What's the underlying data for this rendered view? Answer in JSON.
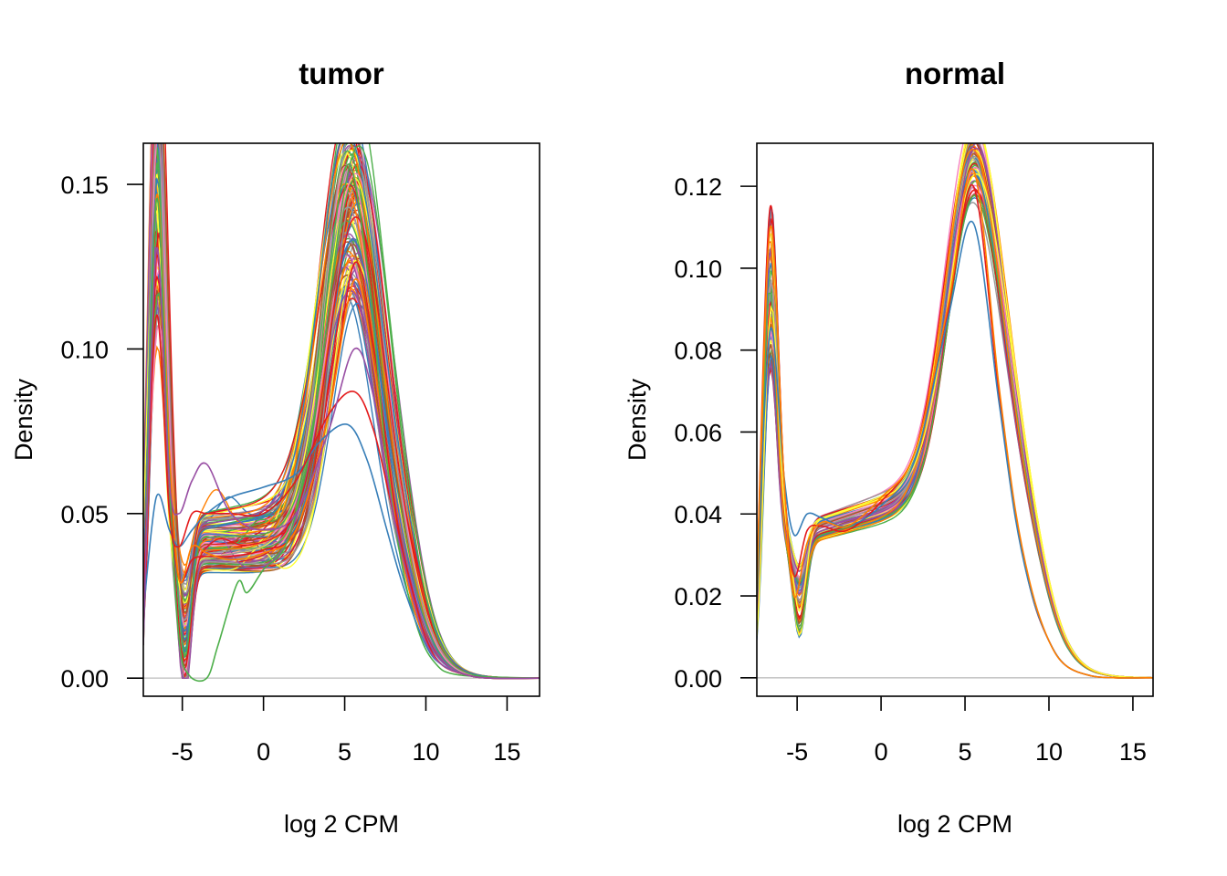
{
  "chart_data": [
    {
      "type": "line",
      "title": "tumor",
      "xlabel": "log 2 CPM",
      "ylabel": "Density",
      "xlim": [
        -7.4,
        17.0
      ],
      "ylim": [
        -0.0055,
        0.1625
      ],
      "xticks": [
        "-5",
        "0",
        "5",
        "10",
        "15"
      ],
      "xtick_values": [
        -5,
        0,
        5,
        10,
        15
      ],
      "yticks": [
        "0.00",
        "0.05",
        "0.10",
        "0.15"
      ],
      "ytick_values": [
        0.0,
        0.05,
        0.1,
        0.15
      ],
      "grid": false,
      "legend": "none",
      "zero_line": true,
      "series_count": 120,
      "palette": [
        "#E41A1C",
        "#377EB8",
        "#4DAF4A",
        "#984EA3",
        "#FF7F00",
        "#FFFF33",
        "#A65628",
        "#F781BF",
        "#999999"
      ],
      "series": [
        {
          "x": [
            -7.4,
            -6.6,
            -5.8,
            -5.2,
            -4.4,
            -3.5,
            -2.0,
            0.0,
            2.0,
            4.0,
            5.6,
            6.8,
            8.0,
            9.0,
            10.0,
            11.0,
            12.5,
            14.0,
            17.0
          ],
          "values": [
            0.02,
            0.128,
            0.06,
            0.03,
            0.036,
            0.037,
            0.037,
            0.039,
            0.045,
            0.08,
            0.126,
            0.1,
            0.055,
            0.028,
            0.012,
            0.004,
            0.001,
            0.0,
            0.0
          ]
        },
        {
          "x": [
            -7.4,
            -6.6,
            -5.8,
            -5.2,
            -4.4,
            -3.5,
            -2.0,
            0.0,
            2.0,
            4.0,
            5.6,
            6.8,
            8.0,
            9.0,
            10.0,
            11.0,
            12.5,
            14.0,
            17.0
          ],
          "values": [
            0.01,
            0.146,
            0.07,
            0.03,
            0.04,
            0.038,
            0.036,
            0.038,
            0.045,
            0.08,
            0.121,
            0.095,
            0.052,
            0.026,
            0.011,
            0.004,
            0.001,
            0.0,
            0.0
          ]
        },
        {
          "x": [
            -7.4,
            -6.6,
            -5.8,
            -5.2,
            -4.6,
            -3.5,
            -2.8,
            -1.6,
            -1.0,
            0.0,
            1.5,
            3.0,
            4.2,
            5.3,
            6.5,
            7.5,
            8.5,
            9.5,
            10.5,
            12.0,
            17.0
          ],
          "values": [
            0.01,
            0.145,
            0.06,
            0.012,
            0.001,
            0.0,
            0.01,
            0.029,
            0.026,
            0.033,
            0.042,
            0.075,
            0.13,
            0.156,
            0.12,
            0.07,
            0.035,
            0.015,
            0.005,
            0.001,
            0.0
          ]
        },
        {
          "x": [
            -7.4,
            -6.6,
            -5.8,
            -5.2,
            -4.4,
            -3.5,
            -2.0,
            0.0,
            2.0,
            3.5,
            5.2,
            6.4,
            7.6,
            8.6,
            10.0,
            11.0,
            12.5,
            14.0,
            17.0
          ],
          "values": [
            0.02,
            0.055,
            0.045,
            0.04,
            0.045,
            0.05,
            0.055,
            0.058,
            0.062,
            0.072,
            0.077,
            0.066,
            0.045,
            0.028,
            0.01,
            0.004,
            0.001,
            0.0,
            0.0
          ]
        },
        {
          "x": [
            -7.4,
            -6.6,
            -5.8,
            -5.2,
            -4.4,
            -3.5,
            -2.0,
            0.0,
            2.0,
            4.0,
            5.6,
            6.8,
            8.0,
            9.0,
            10.0,
            11.0,
            12.5,
            14.0,
            17.0
          ],
          "values": [
            0.02,
            0.11,
            0.05,
            0.04,
            0.05,
            0.05,
            0.05,
            0.05,
            0.06,
            0.08,
            0.087,
            0.075,
            0.05,
            0.03,
            0.012,
            0.004,
            0.001,
            0.0,
            0.0
          ]
        },
        {
          "x": [
            -7.4,
            -6.6,
            -5.8,
            -5.2,
            -4.4,
            -3.5,
            -2.0,
            0.0,
            2.0,
            4.0,
            5.6,
            6.8,
            8.0,
            9.0,
            10.0,
            11.0,
            12.5,
            14.0,
            17.0
          ],
          "values": [
            0.01,
            0.13,
            0.06,
            0.05,
            0.06,
            0.065,
            0.05,
            0.045,
            0.05,
            0.075,
            0.1,
            0.085,
            0.05,
            0.028,
            0.011,
            0.004,
            0.001,
            0.0,
            0.0
          ]
        }
      ]
    },
    {
      "type": "line",
      "title": "normal",
      "xlabel": "log 2 CPM",
      "ylabel": "Density",
      "xlim": [
        -7.4,
        16.2
      ],
      "ylim": [
        -0.0045,
        0.1305
      ],
      "xticks": [
        "-5",
        "0",
        "5",
        "10",
        "15"
      ],
      "xtick_values": [
        -5,
        0,
        5,
        10,
        15
      ],
      "yticks": [
        "0.00",
        "0.02",
        "0.04",
        "0.06",
        "0.08",
        "0.10",
        "0.12"
      ],
      "ytick_values": [
        0.0,
        0.02,
        0.04,
        0.06,
        0.08,
        0.1,
        0.12
      ],
      "grid": false,
      "legend": "none",
      "zero_line": true,
      "series_count": 60,
      "palette": [
        "#E41A1C",
        "#377EB8",
        "#4DAF4A",
        "#984EA3",
        "#FF7F00",
        "#FFFF33",
        "#A65628",
        "#F781BF",
        "#999999"
      ],
      "series": [
        {
          "x": [
            -7.4,
            -6.6,
            -5.8,
            -5.2,
            -4.4,
            -3.5,
            -2.0,
            0.0,
            2.0,
            4.0,
            5.5,
            7.0,
            8.0,
            9.0,
            10.0,
            11.0,
            12.5,
            14.0,
            16.2
          ],
          "values": [
            0.023,
            0.115,
            0.05,
            0.025,
            0.036,
            0.037,
            0.036,
            0.043,
            0.055,
            0.09,
            0.12,
            0.07,
            0.04,
            0.02,
            0.009,
            0.003,
            0.0005,
            0.0,
            0.0
          ]
        },
        {
          "x": [
            -7.4,
            -6.6,
            -5.8,
            -5.2,
            -4.4,
            -3.5,
            -2.0,
            0.0,
            2.0,
            4.0,
            5.5,
            7.0,
            8.0,
            9.0,
            10.0,
            11.0,
            12.5,
            14.0,
            16.2
          ],
          "values": [
            0.023,
            0.085,
            0.05,
            0.035,
            0.04,
            0.039,
            0.037,
            0.042,
            0.053,
            0.088,
            0.111,
            0.068,
            0.039,
            0.02,
            0.009,
            0.003,
            0.0005,
            0.0,
            0.0
          ]
        },
        {
          "x": [
            -7.4,
            -6.6,
            -5.8,
            -5.2,
            -4.4,
            -3.5,
            -2.0,
            0.0,
            2.0,
            4.0,
            5.5,
            7.0,
            8.0,
            9.0,
            10.0,
            11.0,
            12.5,
            14.0,
            16.2
          ],
          "values": [
            0.023,
            0.11,
            0.05,
            0.02,
            0.033,
            0.038,
            0.037,
            0.044,
            0.055,
            0.091,
            0.124,
            0.072,
            0.041,
            0.021,
            0.009,
            0.003,
            0.0005,
            0.0,
            0.0
          ]
        }
      ]
    }
  ]
}
